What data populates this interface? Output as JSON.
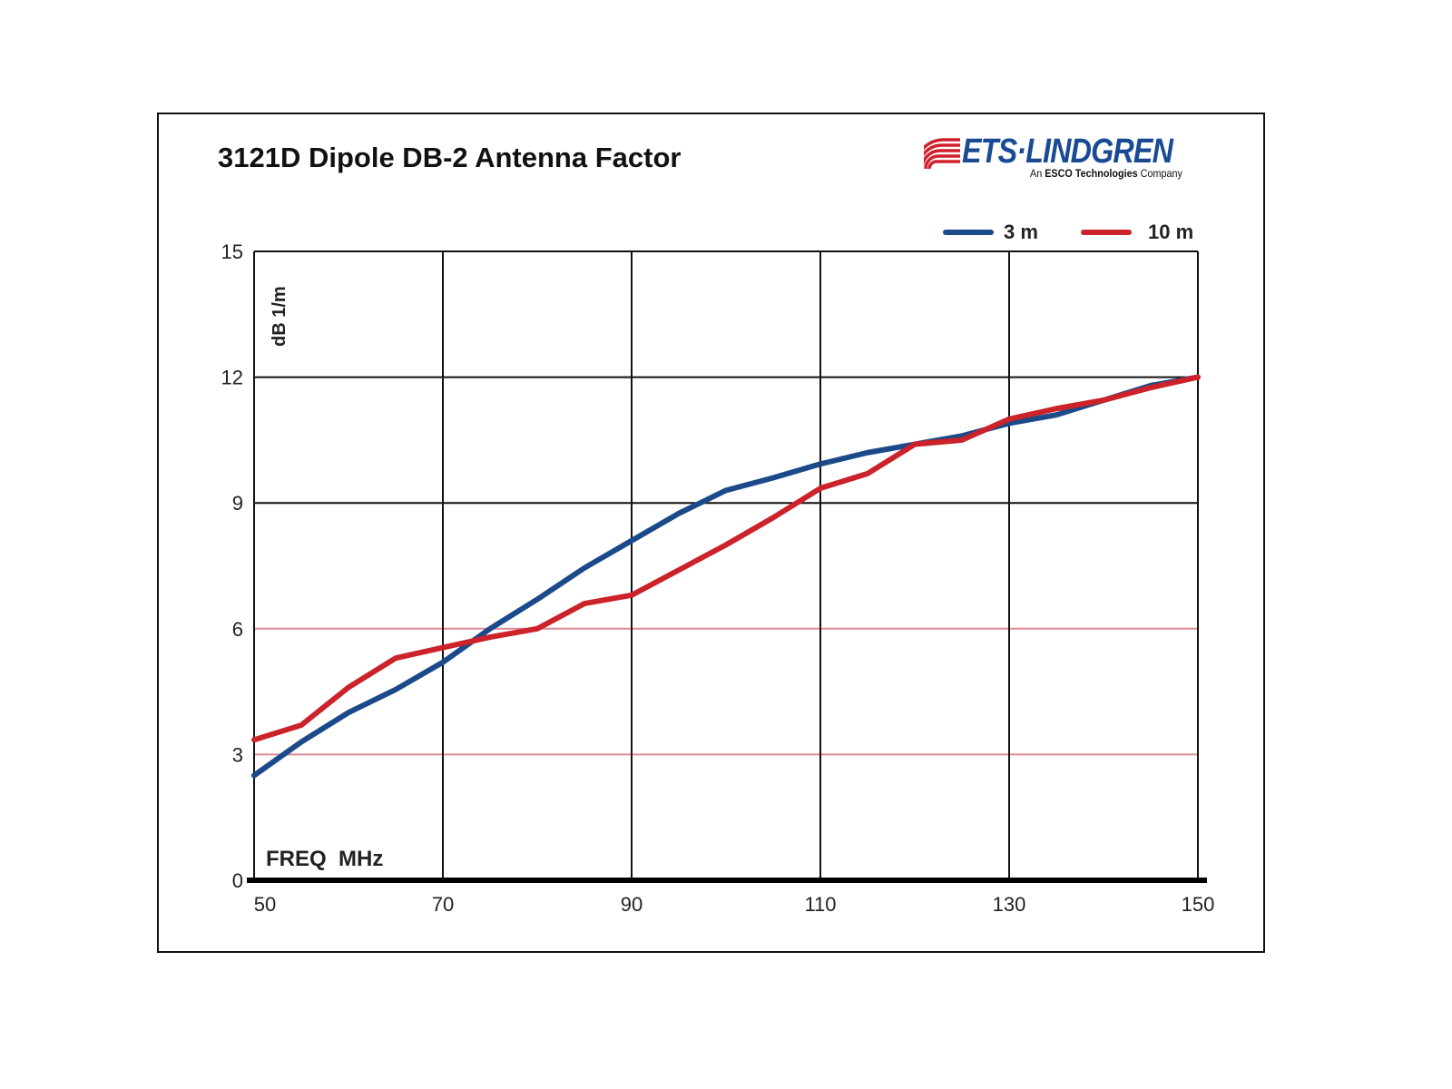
{
  "chart_data": {
    "type": "line",
    "title": "3121D Dipole DB-2 Antenna Factor",
    "xlabel": "FREQ  MHz",
    "ylabel": "dB 1/m",
    "xlim": [
      50,
      150
    ],
    "ylim": [
      0,
      15
    ],
    "x_ticks": [
      "50",
      "70",
      "90",
      "110",
      "130",
      "150"
    ],
    "y_ticks": [
      "0",
      "3",
      "6",
      "9",
      "12",
      "15"
    ],
    "grid": true,
    "legend_position": "top-right",
    "x": [
      50,
      55,
      60,
      65,
      70,
      75,
      80,
      85,
      90,
      95,
      100,
      105,
      110,
      115,
      120,
      125,
      130,
      135,
      140,
      145,
      150
    ],
    "series": [
      {
        "name": "3 m",
        "color": "#1a4a8a",
        "values": [
          2.5,
          3.3,
          4.0,
          4.55,
          5.2,
          6.0,
          6.7,
          7.45,
          8.1,
          8.75,
          9.3,
          9.6,
          9.93,
          10.2,
          10.4,
          10.6,
          10.9,
          11.1,
          11.45,
          11.8,
          12.0
        ]
      },
      {
        "name": "10 m",
        "color": "#cc2229",
        "values": [
          3.35,
          3.7,
          4.6,
          5.3,
          5.55,
          5.8,
          6.0,
          6.6,
          6.8,
          7.4,
          8.0,
          8.65,
          9.35,
          9.7,
          10.4,
          10.5,
          11.0,
          11.25,
          11.45,
          11.75,
          12.0
        ]
      }
    ]
  },
  "logo": {
    "brand": "ETS·LINDGREN",
    "tagline_prefix": "An",
    "tagline_bold": "ESCO Technologies",
    "tagline_suffix": "Company"
  }
}
